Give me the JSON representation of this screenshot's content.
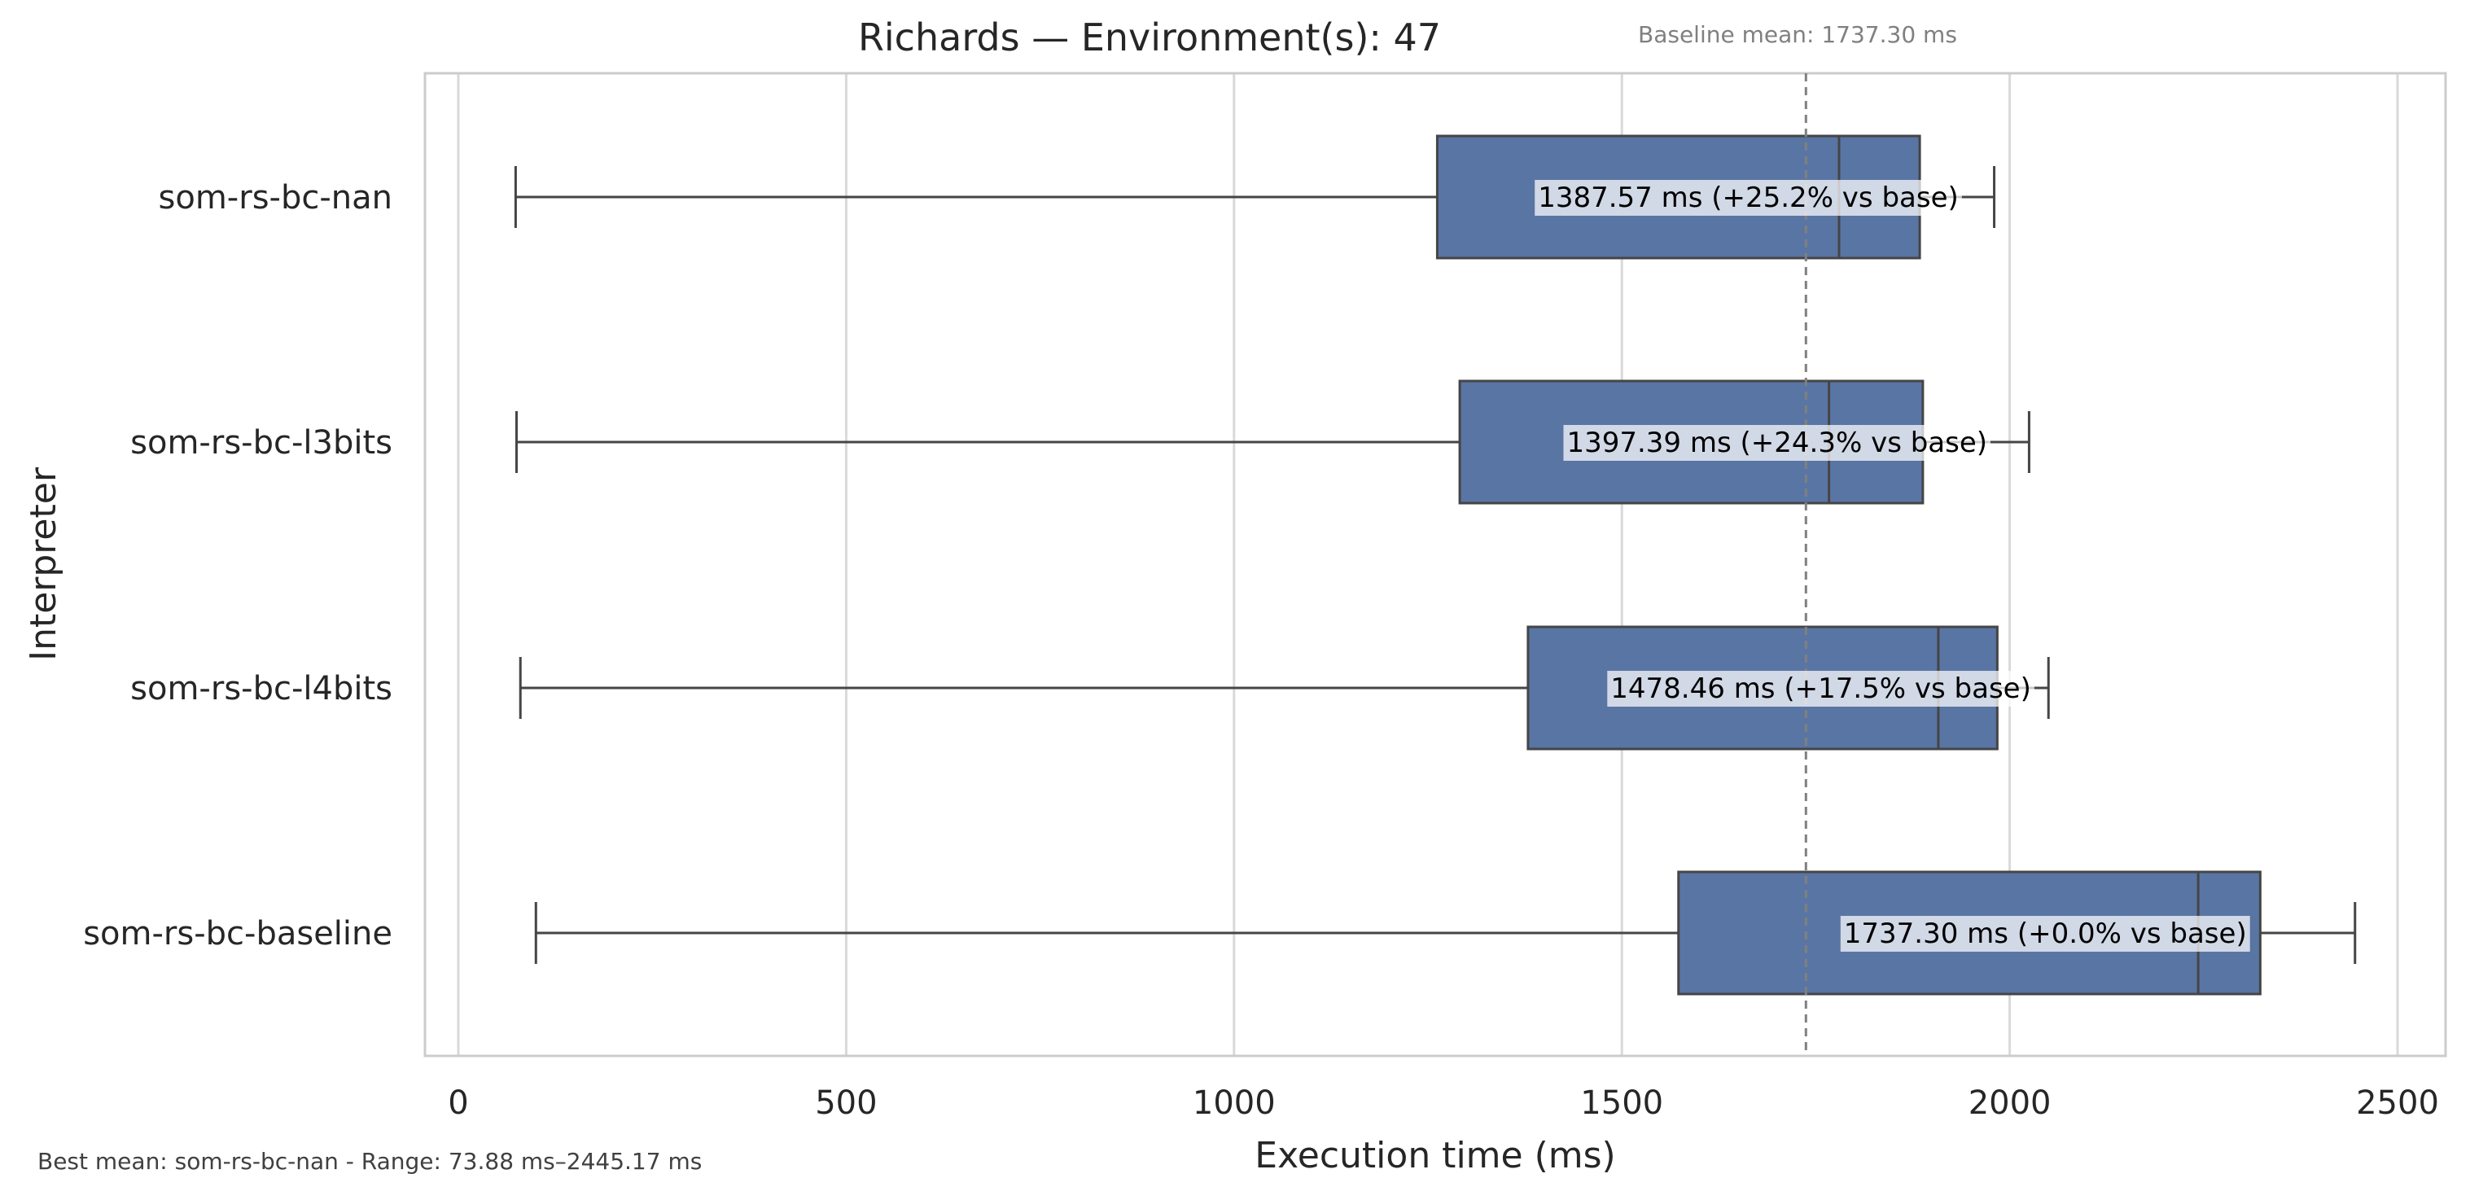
{
  "chart_data": {
    "type": "boxplot",
    "orientation": "horizontal",
    "title": "Richards — Environment(s): 47",
    "xlabel": "Execution time (ms)",
    "ylabel": "Interpreter",
    "xlim": [
      -40,
      2565
    ],
    "xticks": [
      0,
      500,
      1000,
      1500,
      2000,
      2500
    ],
    "grid": "vertical",
    "box_color": "#5975a4",
    "reference_line": {
      "value": 1737.3,
      "label": "Baseline mean: 1737.30 ms",
      "color": "#808080",
      "style": "dashed"
    },
    "categories": [
      "som-rs-bc-nan",
      "som-rs-bc-l3bits",
      "som-rs-bc-l4bits",
      "som-rs-bc-baseline"
    ],
    "boxes": [
      {
        "name": "som-rs-bc-nan",
        "whisker_low": 73.88,
        "q1": 1262,
        "median": 1780,
        "q3": 1884,
        "whisker_high": 1980,
        "label": "1387.57 ms  (+25.2% vs base)"
      },
      {
        "name": "som-rs-bc-l3bits",
        "whisker_low": 75,
        "q1": 1291,
        "median": 1767,
        "q3": 1888,
        "whisker_high": 2025,
        "label": "1397.39 ms  (+24.3% vs base)"
      },
      {
        "name": "som-rs-bc-l4bits",
        "whisker_low": 80,
        "q1": 1379,
        "median": 1908,
        "q3": 1984,
        "whisker_high": 2050,
        "label": "1478.46 ms  (+17.5% vs base)"
      },
      {
        "name": "som-rs-bc-baseline",
        "whisker_low": 100,
        "q1": 1573,
        "median": 2243,
        "q3": 2323,
        "whisker_high": 2445.17,
        "label": "1737.30 ms  (+0.0% vs base)"
      }
    ],
    "footer": "Best mean: som-rs-bc-nan - Range: 73.88 ms–2445.17 ms"
  }
}
